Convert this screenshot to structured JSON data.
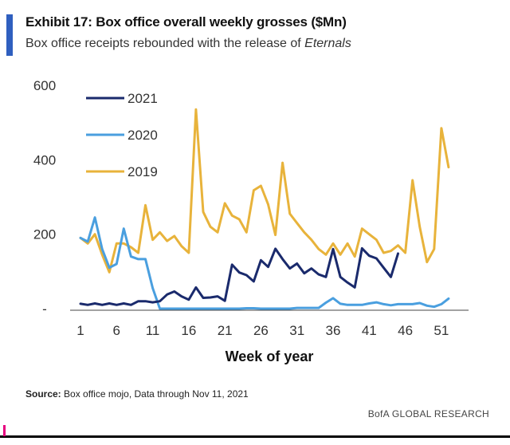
{
  "exhibit": {
    "title": "Exhibit 17: Box office overall weekly grosses ($Mn)",
    "subtitle_prefix": "Box office receipts rebounded with the release of ",
    "subtitle_italic": "Eternals",
    "accent_color": "#2f5fbf"
  },
  "chart_data": {
    "type": "line",
    "title": "",
    "xlabel": "Week of year",
    "ylabel": "",
    "xlim": [
      1,
      53
    ],
    "ylim": [
      0,
      600
    ],
    "x_ticks": [
      1,
      6,
      11,
      16,
      21,
      26,
      31,
      36,
      41,
      46,
      51
    ],
    "y_ticks": [
      0,
      200,
      400,
      600
    ],
    "y_tick_labels": [
      "-",
      "200",
      "400",
      "600"
    ],
    "grid": false,
    "legend_position": "top-left",
    "series": [
      {
        "name": "2021",
        "color": "#1a2a6c",
        "x": [
          1,
          2,
          3,
          4,
          5,
          6,
          7,
          8,
          9,
          10,
          11,
          12,
          13,
          14,
          15,
          16,
          17,
          18,
          19,
          20,
          21,
          22,
          23,
          24,
          25,
          26,
          27,
          28,
          29,
          30,
          31,
          32,
          33,
          34,
          35,
          36,
          37,
          38,
          39,
          40,
          41,
          42,
          43,
          44,
          45
        ],
        "values": [
          13,
          10,
          14,
          10,
          14,
          10,
          14,
          10,
          20,
          20,
          17,
          20,
          38,
          46,
          33,
          24,
          57,
          29,
          30,
          33,
          21,
          118,
          97,
          90,
          73,
          130,
          112,
          161,
          133,
          108,
          121,
          95,
          108,
          92,
          85,
          160,
          85,
          70,
          57,
          162,
          142,
          135,
          110,
          85,
          148
        ]
      },
      {
        "name": "2020",
        "color": "#4a9fdf",
        "x": [
          1,
          2,
          3,
          4,
          5,
          6,
          7,
          8,
          9,
          10,
          11,
          12,
          13,
          14,
          15,
          16,
          17,
          18,
          19,
          20,
          21,
          22,
          23,
          24,
          25,
          26,
          27,
          28,
          29,
          30,
          31,
          32,
          33,
          34,
          35,
          36,
          37,
          38,
          39,
          40,
          41,
          42,
          43,
          44,
          45,
          46,
          47,
          48,
          49,
          50,
          51,
          52
        ],
        "values": [
          190,
          180,
          245,
          160,
          110,
          120,
          215,
          140,
          133,
          133,
          55,
          0,
          0,
          0,
          0,
          0,
          0,
          0,
          0,
          0,
          0,
          0,
          0,
          1,
          1,
          0,
          0,
          0,
          0,
          0,
          2,
          2,
          2,
          2,
          16,
          28,
          13,
          10,
          10,
          10,
          14,
          17,
          12,
          9,
          12,
          12,
          12,
          15,
          8,
          5,
          12,
          27
        ]
      },
      {
        "name": "2019",
        "color": "#e8b33b",
        "x": [
          1,
          2,
          3,
          4,
          5,
          6,
          7,
          8,
          9,
          10,
          11,
          12,
          13,
          14,
          15,
          16,
          17,
          18,
          19,
          20,
          21,
          22,
          23,
          24,
          25,
          26,
          27,
          28,
          29,
          30,
          31,
          32,
          33,
          34,
          35,
          36,
          37,
          38,
          39,
          40,
          41,
          42,
          43,
          44,
          45,
          46,
          47,
          48,
          49,
          50,
          51,
          52
        ],
        "values": [
          190,
          175,
          200,
          145,
          98,
          175,
          175,
          165,
          150,
          278,
          185,
          205,
          182,
          195,
          168,
          150,
          535,
          260,
          220,
          205,
          283,
          250,
          240,
          205,
          318,
          330,
          280,
          198,
          392,
          255,
          230,
          205,
          185,
          160,
          145,
          175,
          145,
          175,
          140,
          215,
          200,
          185,
          150,
          155,
          170,
          150,
          345,
          220,
          125,
          160,
          485,
          380
        ]
      }
    ]
  },
  "footer": {
    "source_label": "Source:",
    "source_text": " Box office mojo, Data through Nov 11, 2021",
    "brand": "BofA GLOBAL RESEARCH"
  }
}
